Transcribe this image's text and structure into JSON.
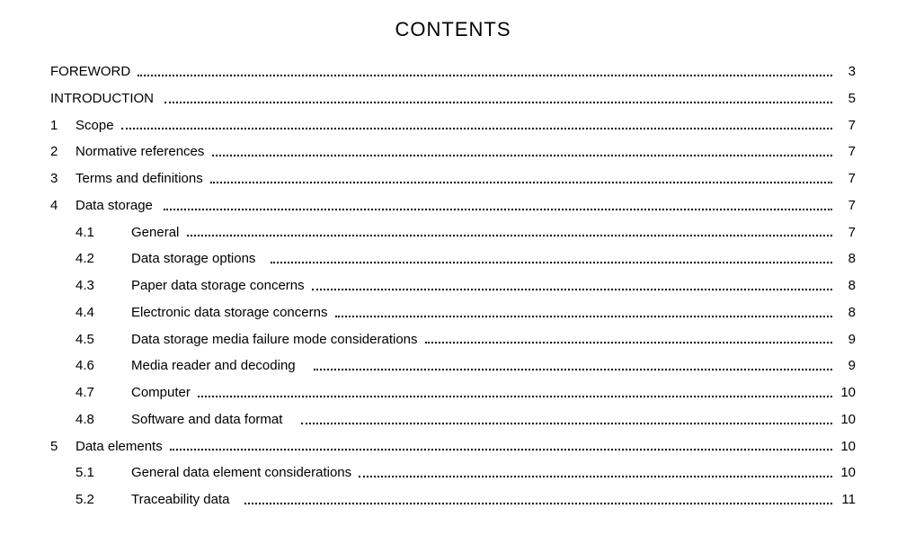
{
  "title": "CONTENTS",
  "entries": [
    {
      "level": 0,
      "num": "",
      "title": "FOREWORD ",
      "page": "3"
    },
    {
      "level": 0,
      "num": "",
      "title": "INTRODUCTION  ",
      "page": "5"
    },
    {
      "level": 1,
      "num": "1",
      "title": "Scope ",
      "page": "7"
    },
    {
      "level": 1,
      "num": "2",
      "title": "Normative references ",
      "page": "7"
    },
    {
      "level": 1,
      "num": "3",
      "title": "Terms and definitions ",
      "page": "7"
    },
    {
      "level": 1,
      "num": "4",
      "title": "Data storage  ",
      "page": "7"
    },
    {
      "level": 2,
      "num": "4.1",
      "title": "General ",
      "page": "7"
    },
    {
      "level": 2,
      "num": "4.2",
      "title": "Data storage options   ",
      "page": "8"
    },
    {
      "level": 2,
      "num": "4.3",
      "title": "Paper data storage concerns ",
      "page": "8"
    },
    {
      "level": 2,
      "num": "4.4",
      "title": "Electronic data storage concerns ",
      "page": "8"
    },
    {
      "level": 2,
      "num": "4.5",
      "title": "Data storage media failure mode considerations ",
      "page": "9"
    },
    {
      "level": 2,
      "num": "4.6",
      "title": "Media reader and decoding    ",
      "page": "9"
    },
    {
      "level": 2,
      "num": "4.7",
      "title": "Computer ",
      "page": "10"
    },
    {
      "level": 2,
      "num": "4.8",
      "title": "Software and data format    ",
      "page": "10"
    },
    {
      "level": 1,
      "num": "5",
      "title": "Data elements ",
      "page": "10"
    },
    {
      "level": 2,
      "num": "5.1",
      "title": "General data element considerations ",
      "page": "10"
    },
    {
      "level": 2,
      "num": "5.2",
      "title": "Traceability data   ",
      "page": "11"
    }
  ]
}
